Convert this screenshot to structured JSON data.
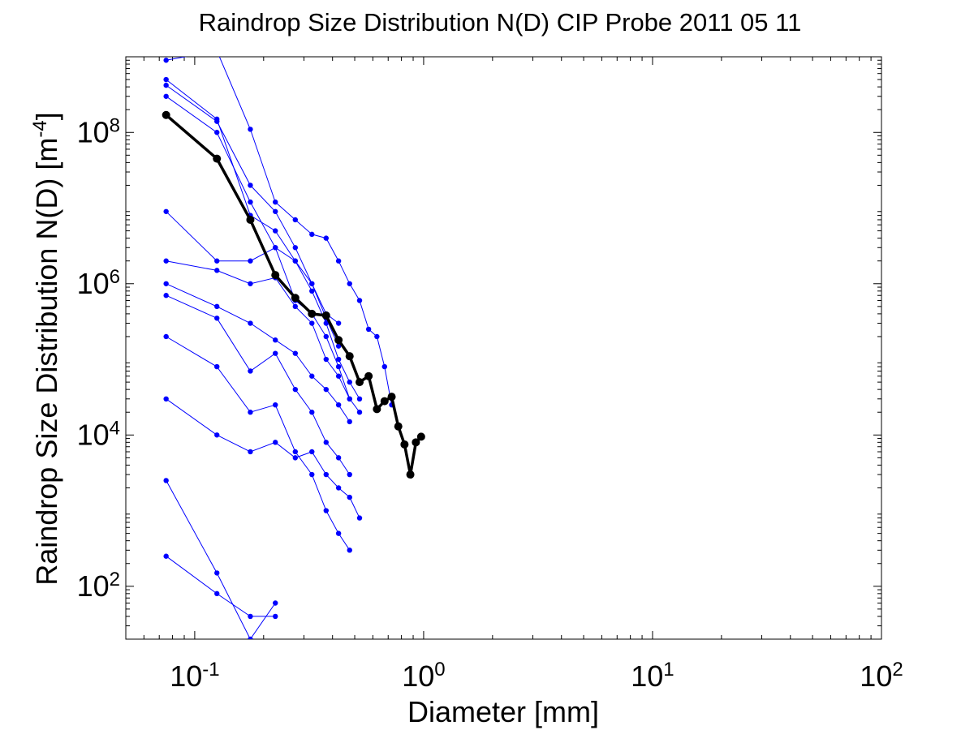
{
  "chart_data": {
    "type": "line",
    "title": "Raindrop Size Distribution N(D) CIP Probe 2011 05 11",
    "xlabel": "Diameter [mm]",
    "ylabel_main": "Raindrop Size Distribution N(D) [m",
    "ylabel_exp": "-4",
    "ylabel_tail": "]",
    "x_scale": "log",
    "y_scale": "log",
    "xlim": [
      0.05,
      100
    ],
    "ylim": [
      20,
      1000000000
    ],
    "grid": false,
    "legend": "none",
    "x_ticks": [
      {
        "value": 0.1,
        "base": "10",
        "exp": "-1"
      },
      {
        "value": 1,
        "base": "10",
        "exp": "0"
      },
      {
        "value": 10,
        "base": "10",
        "exp": "1"
      },
      {
        "value": 100,
        "base": "10",
        "exp": "2"
      }
    ],
    "y_ticks": [
      {
        "value": 100,
        "base": "10",
        "exp": "2"
      },
      {
        "value": 10000,
        "base": "10",
        "exp": "4"
      },
      {
        "value": 1000000,
        "base": "10",
        "exp": "6"
      },
      {
        "value": 100000000,
        "base": "10",
        "exp": "8"
      }
    ],
    "colors": {
      "series": "#0000ff",
      "mean": "#000000",
      "axes": "#000000"
    },
    "series": [
      {
        "points": [
          [
            0.075,
            500000000
          ],
          [
            0.125,
            150000000
          ],
          [
            0.175,
            8000000
          ],
          [
            0.225,
            5000000
          ],
          [
            0.275,
            2000000
          ],
          [
            0.325,
            800000
          ],
          [
            0.375,
            300000
          ],
          [
            0.425,
            100000
          ],
          [
            0.475,
            50000
          ],
          [
            0.525,
            30000
          ]
        ]
      },
      {
        "points": [
          [
            0.075,
            300000000
          ],
          [
            0.125,
            100000000
          ],
          [
            0.175,
            12000000
          ],
          [
            0.225,
            3000000
          ],
          [
            0.275,
            600000
          ],
          [
            0.325,
            400000
          ],
          [
            0.375,
            200000
          ],
          [
            0.425,
            80000
          ],
          [
            0.475,
            30000
          ],
          [
            0.525,
            20000
          ]
        ]
      },
      {
        "points": [
          [
            0.075,
            420000000
          ],
          [
            0.125,
            140000000
          ],
          [
            0.175,
            20000000
          ],
          [
            0.225,
            9000000
          ],
          [
            0.275,
            3000000
          ],
          [
            0.325,
            1000000
          ],
          [
            0.375,
            350000
          ],
          [
            0.425,
            150000
          ]
        ]
      },
      {
        "points": [
          [
            0.075,
            900000000
          ],
          [
            0.125,
            1200000000
          ],
          [
            0.175,
            110000000
          ],
          [
            0.225,
            12000000
          ],
          [
            0.275,
            7000000
          ],
          [
            0.325,
            4500000
          ],
          [
            0.375,
            4000000
          ],
          [
            0.425,
            2000000
          ],
          [
            0.475,
            1000000
          ],
          [
            0.525,
            600000
          ],
          [
            0.575,
            250000
          ],
          [
            0.625,
            200000
          ],
          [
            0.675,
            80000
          ],
          [
            0.725,
            25000
          ]
        ]
      },
      {
        "points": [
          [
            0.075,
            9000000
          ],
          [
            0.125,
            2000000
          ],
          [
            0.175,
            2000000
          ],
          [
            0.225,
            3000000
          ],
          [
            0.275,
            2000000
          ],
          [
            0.325,
            1000000
          ],
          [
            0.375,
            400000
          ],
          [
            0.425,
            300000
          ]
        ]
      },
      {
        "points": [
          [
            0.075,
            2000000
          ],
          [
            0.125,
            1500000
          ],
          [
            0.175,
            1000000
          ],
          [
            0.225,
            1200000
          ],
          [
            0.275,
            500000
          ],
          [
            0.325,
            300000
          ],
          [
            0.375,
            100000
          ],
          [
            0.425,
            60000
          ],
          [
            0.475,
            30000
          ]
        ]
      },
      {
        "points": [
          [
            0.075,
            1000000
          ],
          [
            0.125,
            500000
          ],
          [
            0.175,
            300000
          ],
          [
            0.225,
            180000
          ],
          [
            0.275,
            120000
          ],
          [
            0.325,
            60000
          ],
          [
            0.375,
            40000
          ],
          [
            0.425,
            25000
          ],
          [
            0.475,
            15000
          ]
        ]
      },
      {
        "points": [
          [
            0.075,
            700000
          ],
          [
            0.125,
            350000
          ],
          [
            0.175,
            70000
          ],
          [
            0.225,
            120000
          ],
          [
            0.275,
            40000
          ],
          [
            0.325,
            20000
          ],
          [
            0.375,
            8000
          ],
          [
            0.425,
            5000
          ],
          [
            0.475,
            3000
          ]
        ]
      },
      {
        "points": [
          [
            0.075,
            200000
          ],
          [
            0.125,
            80000
          ],
          [
            0.175,
            20000
          ],
          [
            0.225,
            25000
          ],
          [
            0.275,
            6000
          ],
          [
            0.325,
            3000
          ],
          [
            0.375,
            1000
          ],
          [
            0.425,
            500
          ],
          [
            0.475,
            300
          ]
        ]
      },
      {
        "points": [
          [
            0.075,
            30000
          ],
          [
            0.125,
            10000
          ],
          [
            0.175,
            6000
          ],
          [
            0.225,
            8000
          ],
          [
            0.275,
            5000
          ],
          [
            0.325,
            6000
          ],
          [
            0.375,
            3000
          ],
          [
            0.425,
            2000
          ],
          [
            0.475,
            1500
          ],
          [
            0.525,
            800
          ]
        ]
      },
      {
        "points": [
          [
            0.075,
            2500
          ],
          [
            0.125,
            150
          ],
          [
            0.175,
            20
          ],
          [
            0.225,
            60
          ]
        ]
      },
      {
        "points": [
          [
            0.075,
            250
          ],
          [
            0.125,
            80
          ],
          [
            0.175,
            40
          ],
          [
            0.225,
            40
          ]
        ]
      }
    ],
    "mean_series": {
      "points": [
        [
          0.075,
          170000000
        ],
        [
          0.125,
          45000000
        ],
        [
          0.175,
          7000000
        ],
        [
          0.225,
          1300000
        ],
        [
          0.275,
          650000
        ],
        [
          0.325,
          400000
        ],
        [
          0.375,
          380000
        ],
        [
          0.425,
          180000
        ],
        [
          0.475,
          110000
        ],
        [
          0.525,
          50000
        ],
        [
          0.575,
          60000
        ],
        [
          0.625,
          22000
        ],
        [
          0.675,
          28000
        ],
        [
          0.725,
          32000
        ],
        [
          0.775,
          13000
        ],
        [
          0.825,
          7500
        ],
        [
          0.875,
          3000
        ],
        [
          0.925,
          8000
        ],
        [
          0.975,
          9500
        ]
      ]
    }
  }
}
